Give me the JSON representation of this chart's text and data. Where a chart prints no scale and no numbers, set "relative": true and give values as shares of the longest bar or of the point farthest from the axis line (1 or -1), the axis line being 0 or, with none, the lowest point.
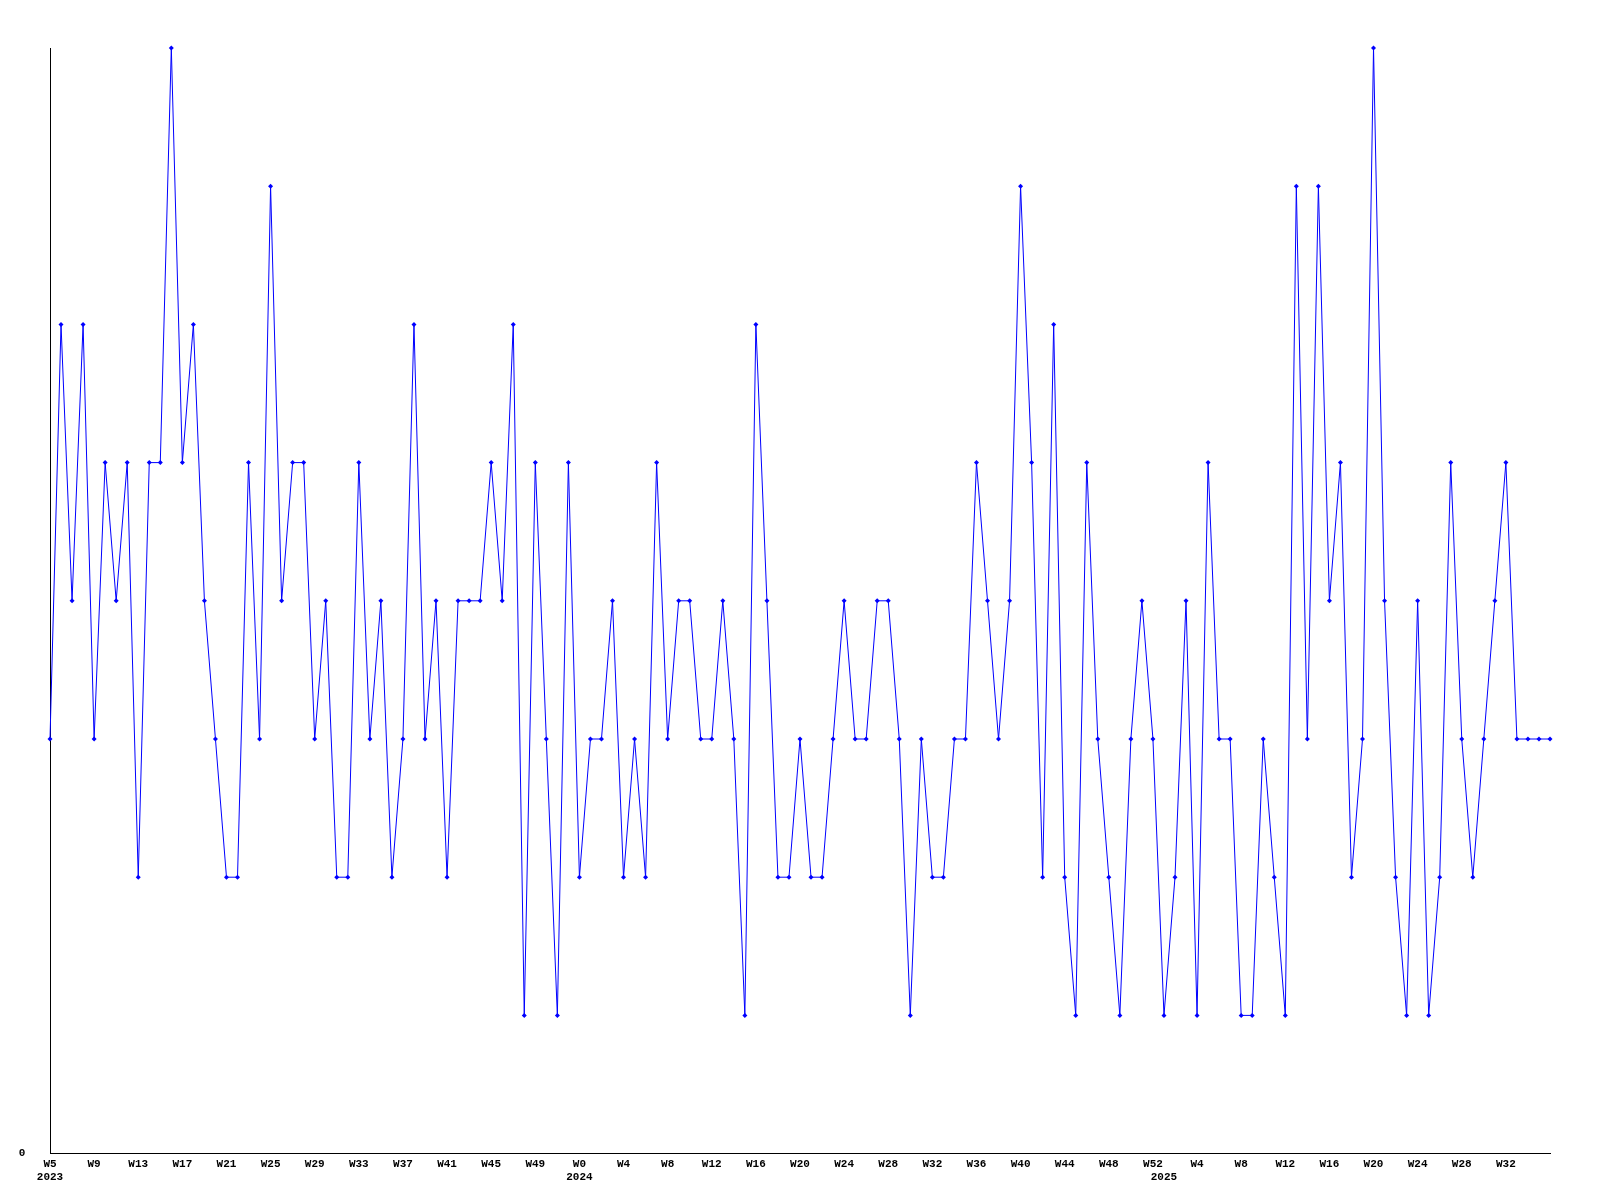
{
  "chart_data": {
    "type": "line",
    "categories": [
      "W5\n2023",
      null,
      null,
      null,
      "W9",
      null,
      null,
      null,
      "W13",
      null,
      null,
      null,
      "W17",
      null,
      null,
      null,
      "W21",
      null,
      null,
      null,
      "W25",
      null,
      null,
      null,
      "W29",
      null,
      null,
      null,
      "W33",
      null,
      null,
      null,
      "W37",
      null,
      null,
      null,
      "W41",
      null,
      null,
      null,
      "W45",
      null,
      null,
      null,
      "W49",
      null,
      null,
      null,
      "W0\n2024",
      null,
      null,
      null,
      "W4",
      null,
      null,
      null,
      "W8",
      null,
      null,
      null,
      "W12",
      null,
      null,
      null,
      "W16",
      null,
      null,
      null,
      "W20",
      null,
      null,
      null,
      "W24",
      null,
      null,
      null,
      "W28",
      null,
      null,
      null,
      "W32",
      null,
      null,
      null,
      "W36",
      null,
      null,
      null,
      "W40",
      null,
      null,
      null,
      "W44",
      null,
      null,
      null,
      "W48",
      null,
      null,
      null,
      "W52",
      "\n2025",
      null,
      null,
      "W4",
      null,
      null,
      null,
      "W8",
      null,
      null,
      null,
      "W12",
      null,
      null,
      null,
      "W16",
      null,
      null,
      null,
      "W20",
      null,
      null,
      null,
      "W24",
      null,
      null,
      null,
      "W28",
      null,
      null,
      null,
      "W32",
      null,
      null,
      null,
      null
    ],
    "values": [
      0.375,
      0.75,
      0.5,
      0.75,
      0.375,
      0.625,
      0.5,
      0.625,
      0.25,
      0.625,
      0.625,
      1,
      0.625,
      0.75,
      0.5,
      0.375,
      0.25,
      0.25,
      0.625,
      0.375,
      0.875,
      0.5,
      0.625,
      0.625,
      0.375,
      0.5,
      0.25,
      0.25,
      0.625,
      0.375,
      0.5,
      0.25,
      0.375,
      0.75,
      0.375,
      0.5,
      0.25,
      0.5,
      0.5,
      0.5,
      0.625,
      0.5,
      0.75,
      0.125,
      0.625,
      0.375,
      0.125,
      0.625,
      0.25,
      0.375,
      0.375,
      0.5,
      0.25,
      0.375,
      0.25,
      0.625,
      0.375,
      0.5,
      0.5,
      0.375,
      0.375,
      0.5,
      0.375,
      0.125,
      0.75,
      0.5,
      0.25,
      0.25,
      0.375,
      0.25,
      0.25,
      0.375,
      0.5,
      0.375,
      0.375,
      0.5,
      0.5,
      0.375,
      0.125,
      0.375,
      0.25,
      0.25,
      0.375,
      0.375,
      0.625,
      0.5,
      0.375,
      0.5,
      0.875,
      0.625,
      0.25,
      0.75,
      0.25,
      0.125,
      0.625,
      0.375,
      0.25,
      0.125,
      0.375,
      0.5,
      0.375,
      0.125,
      0.25,
      0.5,
      0.125,
      0.625,
      0.375,
      0.375,
      0.125,
      0.125,
      0.375,
      0.25,
      0.125,
      0.875,
      0.375,
      0.875,
      0.5,
      0.625,
      0.25,
      0.375,
      1,
      0.5,
      0.25,
      0.125,
      0.5,
      0.125,
      0.25,
      0.625,
      0.375,
      0.25,
      0.375,
      0.5,
      0.625,
      0.375,
      0.375,
      0.375,
      0.375
    ],
    "color": "#0000ff",
    "relative": true,
    "annotations": [
      "0"
    ],
    "marker": "diamond"
  }
}
